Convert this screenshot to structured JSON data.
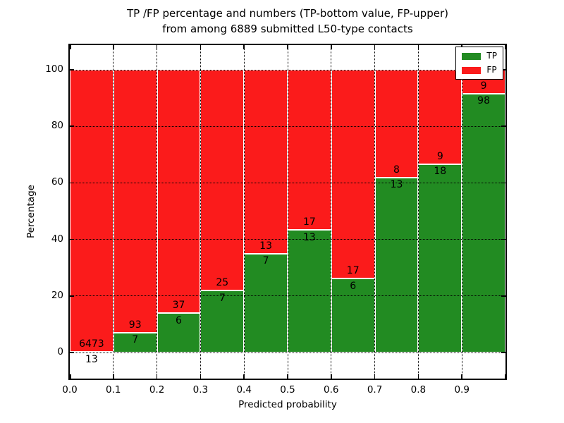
{
  "figure": {
    "title_line1": "TP /FP percentage and numbers (TP-bottom value, FP-upper)",
    "title_line2": "from among 6889 submitted L50-type contacts",
    "xlabel": "Predicted probability",
    "ylabel": "Percentage"
  },
  "legend": {
    "position": "upper right",
    "items": [
      {
        "label": "TP",
        "color": "#228b22"
      },
      {
        "label": "FP",
        "color": "#fb1b1b"
      }
    ]
  },
  "colors": {
    "tp": "#228b22",
    "fp": "#fb1b1b",
    "grid": "#000000",
    "background": "#ffffff",
    "bar_edge": "#ffffff"
  },
  "chart_data": {
    "type": "bar",
    "stacked": true,
    "normalized_to_percent": true,
    "title": "TP /FP percentage and numbers (TP-bottom value, FP-upper)\nfrom among 6889 submitted L50-type contacts",
    "xlabel": "Predicted probability",
    "ylabel": "Percentage",
    "total_contacts": 6889,
    "bin_edges": [
      0.0,
      0.1,
      0.2,
      0.3,
      0.4,
      0.5,
      0.6,
      0.7,
      0.8,
      0.9,
      1.0
    ],
    "x_tick_labels": [
      "0.0",
      "0.1",
      "0.2",
      "0.3",
      "0.4",
      "0.5",
      "0.6",
      "0.7",
      "0.8",
      "0.9"
    ],
    "y_ticks": [
      0,
      20,
      40,
      60,
      80,
      100
    ],
    "y_tick_labels": [
      "0",
      "20",
      "40",
      "60",
      "80",
      "100"
    ],
    "xlim": [
      0.0,
      1.0
    ],
    "ylim": [
      -10,
      110
    ],
    "grid": "dotted black, horizontal and vertical",
    "legend_position": "upper right",
    "series": [
      {
        "name": "TP",
        "color": "#228b22",
        "counts": [
          13,
          7,
          6,
          7,
          7,
          13,
          6,
          13,
          18,
          98
        ]
      },
      {
        "name": "FP",
        "color": "#fb1b1b",
        "counts": [
          6473,
          93,
          37,
          25,
          13,
          17,
          17,
          8,
          9,
          9
        ]
      }
    ],
    "tp_percent": [
      0.2,
      7.0,
      14.0,
      21.9,
      35.0,
      43.3,
      26.1,
      61.9,
      66.7,
      91.6
    ]
  }
}
